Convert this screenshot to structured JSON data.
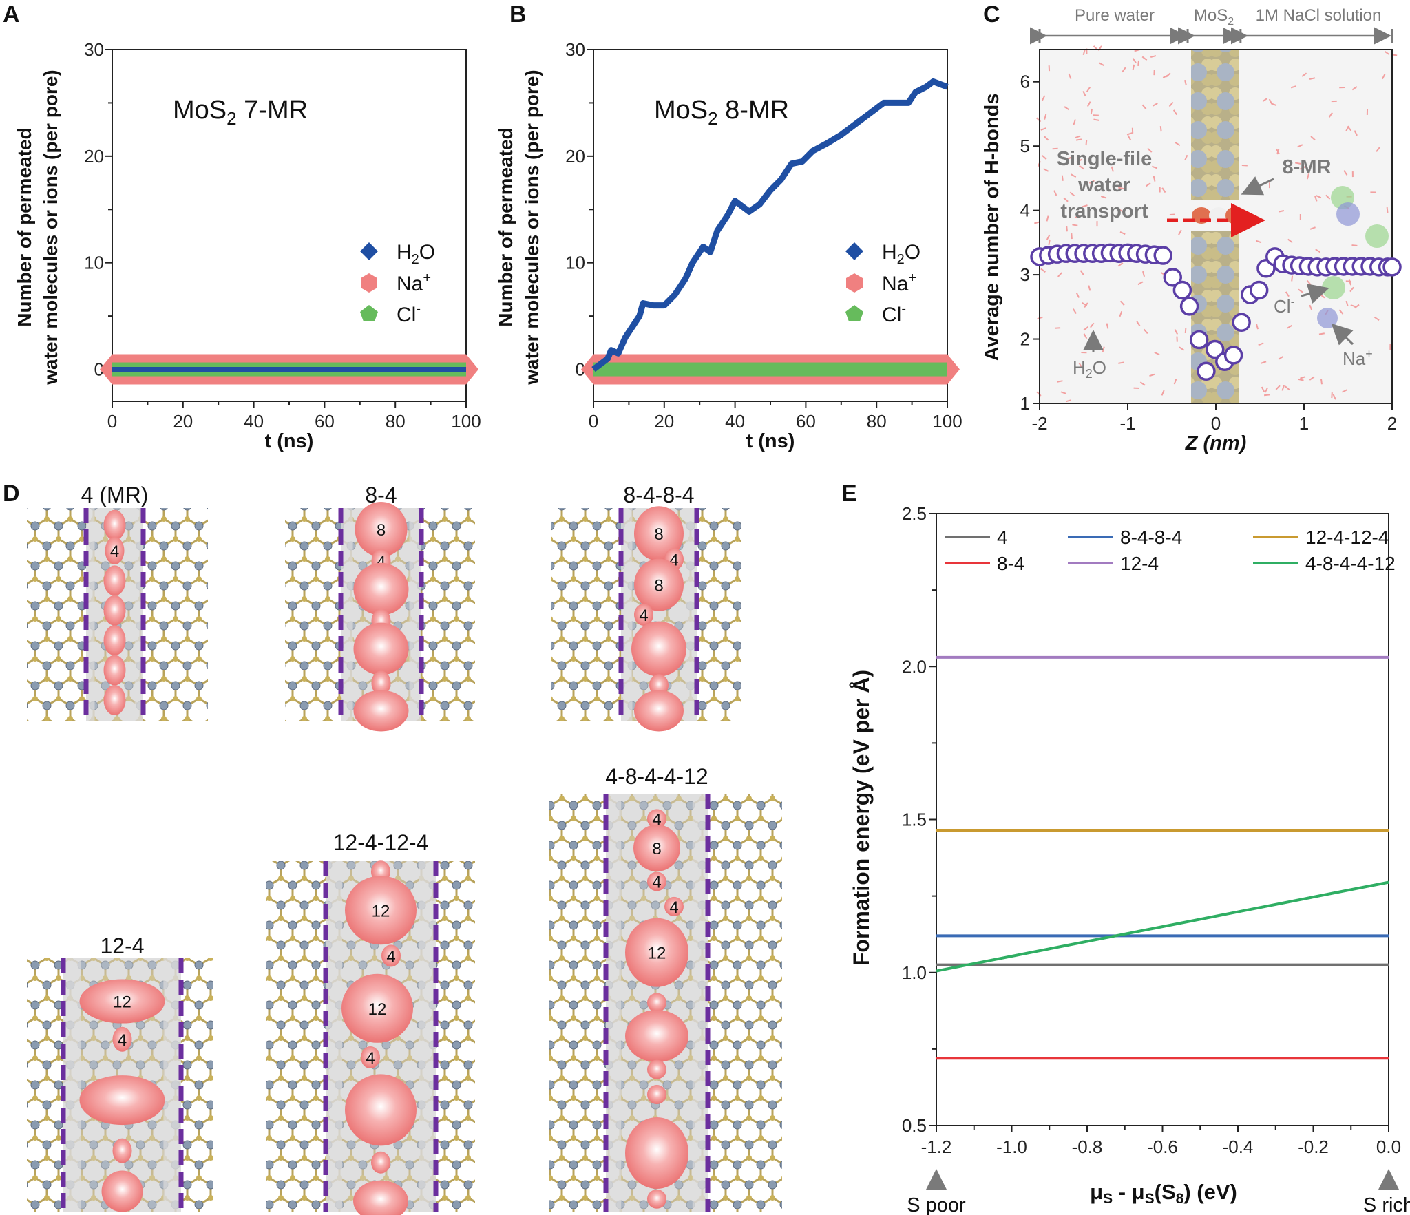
{
  "panels": {
    "A": {
      "letter": "A"
    },
    "B": {
      "letter": "B"
    },
    "C": {
      "letter": "C",
      "regions": [
        "Pure water",
        "MoS",
        "1M NaCl solution"
      ],
      "mos2_sub": "2",
      "annotations": {
        "single_file": [
          "Single-file",
          "water",
          "transport"
        ],
        "pore": "8-MR",
        "cl": "Cl",
        "cl_sup": "-",
        "na": "Na",
        "na_sup": "+",
        "h2o_a": "H",
        "h2o_sub": "2",
        "h2o_b": "O"
      }
    },
    "D": {
      "letter": "D",
      "structures": [
        {
          "title": "4 (MR)",
          "ring_labels": [
            "4"
          ]
        },
        {
          "title": "8-4",
          "ring_labels": [
            "8",
            "4"
          ]
        },
        {
          "title": "8-4-8-4",
          "ring_labels": [
            "8",
            "4",
            "8",
            "4"
          ]
        },
        {
          "title": "12-4",
          "ring_labels": [
            "12",
            "4"
          ]
        },
        {
          "title": "12-4-12-4",
          "ring_labels": [
            "12",
            "4",
            "12",
            "4"
          ]
        },
        {
          "title": "4-8-4-4-12",
          "ring_labels": [
            "4",
            "8",
            "4",
            "4",
            "12"
          ]
        }
      ],
      "colors": {
        "mo": "#8a9bb0",
        "s": "#b8a35c",
        "pore": "#f08080",
        "band": "#d9d9d9",
        "dash": "#6b2f9e"
      }
    },
    "E": {
      "letter": "E",
      "x_annot_left": "S poor",
      "x_annot_right": "S rich"
    }
  },
  "chart_data": [
    {
      "id": "A",
      "type": "line",
      "title_main": "MoS",
      "title_sub": "2",
      "title_rest": " 7-MR",
      "xlabel": "t (ns)",
      "ylabel_lines": [
        "Number of permeated",
        "water molecules or ions (per pore)"
      ],
      "xlim": [
        0,
        100
      ],
      "ylim": [
        -3,
        30
      ],
      "xticks": [
        "0",
        "20",
        "40",
        "60",
        "80",
        "100"
      ],
      "yticks": [
        "0",
        "10",
        "20",
        "30"
      ],
      "legend_position": "right",
      "series": [
        {
          "name": "H2O",
          "name_main": "H",
          "name_sub": "2",
          "name_rest": "O",
          "marker": "diamond",
          "color": "#1f4fa3",
          "x": [
            0,
            100
          ],
          "y": [
            0,
            0
          ]
        },
        {
          "name": "Na+",
          "name_main": "Na",
          "name_sup": "+",
          "marker": "hexagon",
          "color": "#f08080",
          "x": [
            0,
            100
          ],
          "y": [
            0,
            0
          ]
        },
        {
          "name": "Cl-",
          "name_main": "Cl",
          "name_sup": "-",
          "marker": "pentagon",
          "color": "#66bb5c",
          "x": [
            0,
            100
          ],
          "y": [
            0,
            0
          ]
        }
      ]
    },
    {
      "id": "B",
      "type": "line",
      "title_main": "MoS",
      "title_sub": "2",
      "title_rest": " 8-MR",
      "xlabel": "t (ns)",
      "ylabel_lines": [
        "Number of permeated",
        "water molecules or ions (per pore)"
      ],
      "xlim": [
        0,
        100
      ],
      "ylim": [
        -3,
        30
      ],
      "xticks": [
        "0",
        "20",
        "40",
        "60",
        "80",
        "100"
      ],
      "yticks": [
        "0",
        "10",
        "20",
        "30"
      ],
      "legend_position": "right",
      "series": [
        {
          "name": "H2O",
          "name_main": "H",
          "name_sub": "2",
          "name_rest": "O",
          "marker": "diamond",
          "color": "#1f4fa3",
          "x": [
            0,
            2,
            4,
            5,
            7,
            9,
            11,
            13,
            14,
            17,
            20,
            23,
            26,
            28,
            31,
            33,
            35,
            38,
            40,
            42,
            44,
            47,
            50,
            53,
            56,
            59,
            62,
            66,
            70,
            74,
            78,
            82,
            86,
            89,
            91,
            94,
            96,
            100
          ],
          "y": [
            0,
            0.5,
            1,
            1.8,
            1.5,
            3,
            4,
            5,
            6.2,
            6,
            6,
            7,
            8.5,
            10,
            11.5,
            11,
            13,
            14.5,
            15.8,
            15.3,
            14.8,
            15.5,
            16.8,
            17.8,
            19.3,
            19.5,
            20.5,
            21.2,
            22,
            23,
            24,
            25,
            25,
            25,
            26,
            26.5,
            27,
            26.5
          ]
        },
        {
          "name": "Na+",
          "name_main": "Na",
          "name_sup": "+",
          "marker": "hexagon",
          "color": "#f08080",
          "x": [
            0,
            100
          ],
          "y": [
            0,
            0
          ]
        },
        {
          "name": "Cl-",
          "name_main": "Cl",
          "name_sup": "-",
          "marker": "pentagon",
          "color": "#66bb5c",
          "x": [
            0,
            100
          ],
          "y": [
            0,
            0
          ]
        }
      ]
    },
    {
      "id": "C",
      "type": "scatter",
      "xlabel": "Z (nm)",
      "ylabel": "Average number of H-bonds",
      "xlim": [
        -2,
        2
      ],
      "ylim": [
        1,
        6.5
      ],
      "xticks": [
        "-2",
        "-1",
        "0",
        "1",
        "2"
      ],
      "yticks": [
        "1",
        "2",
        "3",
        "4",
        "5",
        "6"
      ],
      "marker": "open-circle",
      "color": "#5b3ea6",
      "x": [
        -2.0,
        -1.9,
        -1.8,
        -1.7,
        -1.6,
        -1.5,
        -1.4,
        -1.3,
        -1.2,
        -1.1,
        -1.0,
        -0.9,
        -0.8,
        -0.7,
        -0.6,
        -0.49,
        -0.38,
        -0.3,
        -0.19,
        -0.11,
        -0.01,
        0.1,
        0.2,
        0.29,
        0.39,
        0.49,
        0.57,
        0.67,
        0.76,
        0.86,
        0.95,
        1.05,
        1.15,
        1.25,
        1.35,
        1.45,
        1.55,
        1.65,
        1.75,
        1.85,
        1.95,
        2.0
      ],
      "y": [
        3.28,
        3.3,
        3.32,
        3.33,
        3.33,
        3.33,
        3.33,
        3.33,
        3.34,
        3.33,
        3.34,
        3.33,
        3.32,
        3.31,
        3.3,
        2.96,
        2.76,
        2.51,
        1.99,
        1.5,
        1.84,
        1.65,
        1.75,
        2.26,
        2.69,
        2.76,
        3.1,
        3.28,
        3.17,
        3.15,
        3.14,
        3.13,
        3.12,
        3.12,
        3.13,
        3.13,
        3.13,
        3.13,
        3.13,
        3.12,
        3.12,
        3.12
      ]
    },
    {
      "id": "E",
      "type": "line",
      "xlabel_main": "μ",
      "xlabel_sub": "S",
      "xlabel_mid": " - μ",
      "xlabel_sub2": "S",
      "xlabel_paren": "(S",
      "xlabel_sub3": "8",
      "xlabel_end": ") (eV)",
      "ylabel": "Formation energy (eV per Å)",
      "xlim": [
        -1.2,
        0.0
      ],
      "ylim": [
        0.5,
        2.5
      ],
      "xticks": [
        "-1.2",
        "-1.0",
        "-0.8",
        "-0.6",
        "-0.4",
        "-0.2",
        "0.0"
      ],
      "yticks": [
        "0.5",
        "1.0",
        "1.5",
        "2.0",
        "2.5"
      ],
      "legend_position": "top",
      "series": [
        {
          "name": "4",
          "color": "#707070",
          "x": [
            -1.2,
            0.0
          ],
          "y": [
            1.025,
            1.025
          ]
        },
        {
          "name": "8-4",
          "color": "#e8353a",
          "x": [
            -1.2,
            0.0
          ],
          "y": [
            0.72,
            0.72
          ]
        },
        {
          "name": "8-4-8-4",
          "color": "#3a6bb5",
          "x": [
            -1.2,
            0.0
          ],
          "y": [
            1.12,
            1.12
          ]
        },
        {
          "name": "12-4",
          "color": "#a27bc0",
          "x": [
            -1.2,
            0.0
          ],
          "y": [
            2.03,
            2.03
          ]
        },
        {
          "name": "12-4-12-4",
          "color": "#c99a30",
          "x": [
            -1.2,
            0.0
          ],
          "y": [
            1.465,
            1.465
          ]
        },
        {
          "name": "4-8-4-4-12",
          "color": "#2fae63",
          "x": [
            -1.2,
            0.0
          ],
          "y": [
            1.005,
            1.295
          ]
        }
      ]
    }
  ]
}
